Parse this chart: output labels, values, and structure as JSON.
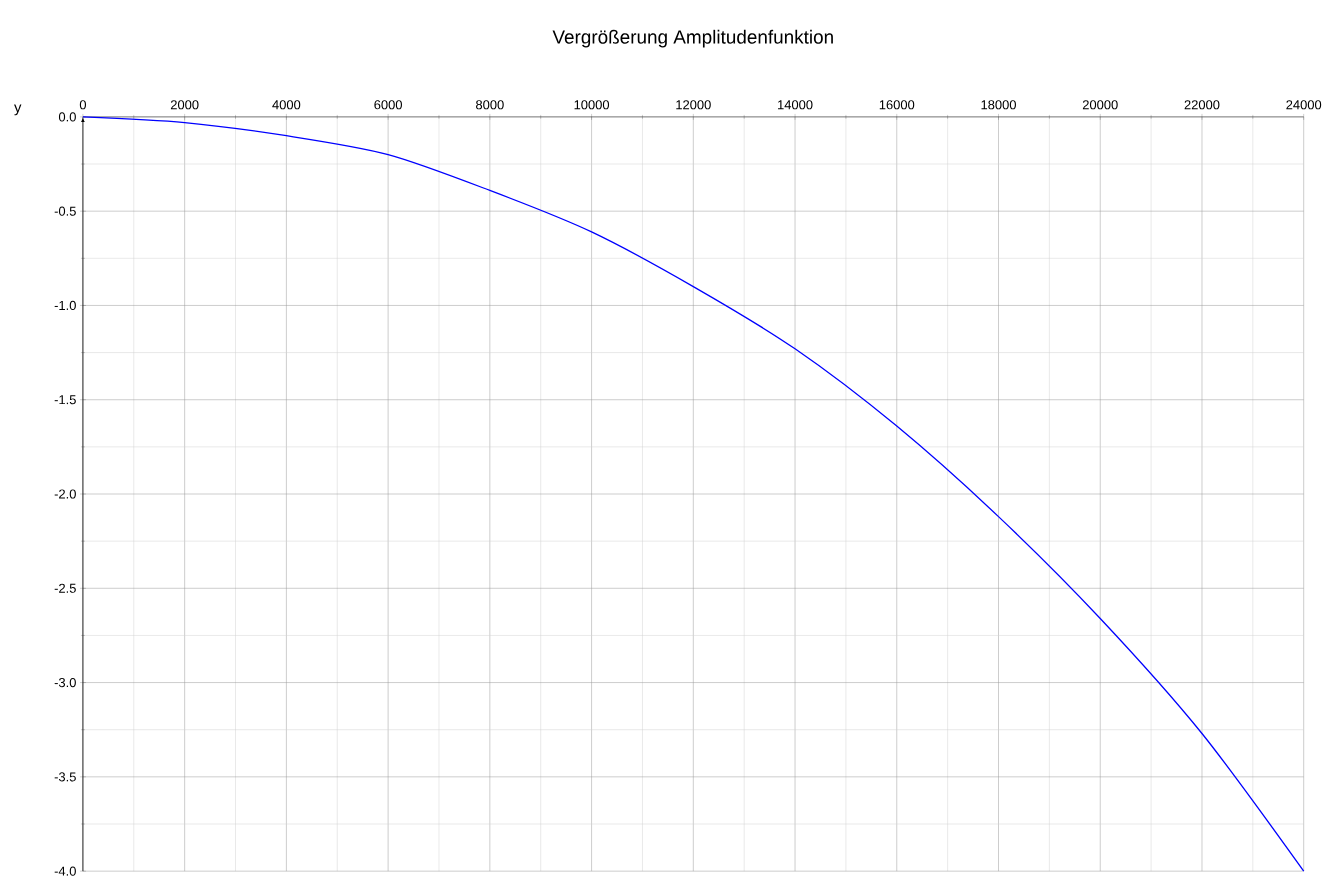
{
  "chart_data": {
    "type": "line",
    "title": "Vergrößerung Amplitudenfunktion",
    "ylabel": "y",
    "x": [
      0,
      2000,
      4000,
      6000,
      8000,
      10000,
      12000,
      14000,
      16000,
      18000,
      20000,
      22000,
      24000
    ],
    "values": [
      0,
      -0.03,
      -0.1,
      -0.2,
      -0.39,
      -0.61,
      -0.9,
      -1.23,
      -1.64,
      -2.12,
      -2.66,
      -3.27,
      -4.0
    ],
    "color": "#0000ff",
    "xlim": [
      0,
      24000
    ],
    "ylim": [
      -4.0,
      0.0
    ],
    "xticks": [
      0,
      2000,
      4000,
      6000,
      8000,
      10000,
      12000,
      14000,
      16000,
      18000,
      20000,
      22000,
      24000
    ],
    "yticks": [
      {
        "value": 0,
        "label": "0.0"
      },
      {
        "value": -0.5,
        "label": "-0.5"
      },
      {
        "value": -1.0,
        "label": "-1.0"
      },
      {
        "value": -1.5,
        "label": "-1.5"
      },
      {
        "value": -2.0,
        "label": "-2.0"
      },
      {
        "value": -2.5,
        "label": "-2.5"
      },
      {
        "value": -3.0,
        "label": "-3.0"
      },
      {
        "value": -3.5,
        "label": "-3.5"
      },
      {
        "value": -4.0,
        "label": "-4.0"
      }
    ],
    "grid": true
  }
}
